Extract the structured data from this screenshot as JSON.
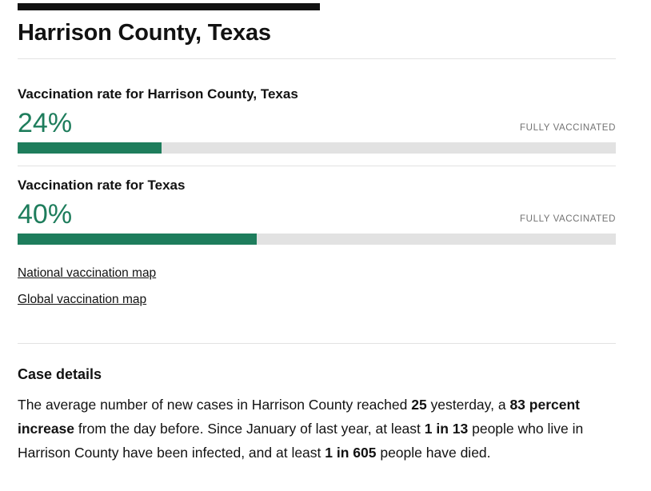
{
  "page": {
    "title": "Harrison County, Texas"
  },
  "vaccination": {
    "county": {
      "heading": "Vaccination rate for Harrison County, Texas",
      "percent_label": "24%",
      "percent": 24,
      "bar_label": "FULLY VACCINATED"
    },
    "state": {
      "heading": "Vaccination rate for Texas",
      "percent_label": "40%",
      "percent": 40,
      "bar_label": "FULLY VACCINATED"
    },
    "links": [
      {
        "label": "National vaccination map"
      },
      {
        "label": "Global vaccination map"
      }
    ]
  },
  "case_details": {
    "heading": "Case details",
    "paragraph": [
      {
        "text": "The average number of new cases in Harrison County reached ",
        "bold": false
      },
      {
        "text": "25",
        "bold": true
      },
      {
        "text": " yesterday, a ",
        "bold": false
      },
      {
        "text": "83 percent increase",
        "bold": true
      },
      {
        "text": " from the day before. Since January of last year, at least ",
        "bold": false
      },
      {
        "text": "1 in 13",
        "bold": true
      },
      {
        "text": " people who live in Harrison County have been infected, and at least ",
        "bold": false
      },
      {
        "text": "1 in 605",
        "bold": true
      },
      {
        "text": " people have died.",
        "bold": false
      }
    ]
  },
  "chart_data": [
    {
      "type": "bar",
      "title": "Vaccination rate for Harrison County, Texas",
      "categories": [
        "Fully vaccinated"
      ],
      "values": [
        24
      ],
      "ylim": [
        0,
        100
      ]
    },
    {
      "type": "bar",
      "title": "Vaccination rate for Texas",
      "categories": [
        "Fully vaccinated"
      ],
      "values": [
        40
      ],
      "ylim": [
        0,
        100
      ]
    }
  ],
  "colors": {
    "accent_green": "#1e7d5c",
    "bar_bg": "#e2e2e2",
    "text": "#121212",
    "muted": "#727272"
  }
}
